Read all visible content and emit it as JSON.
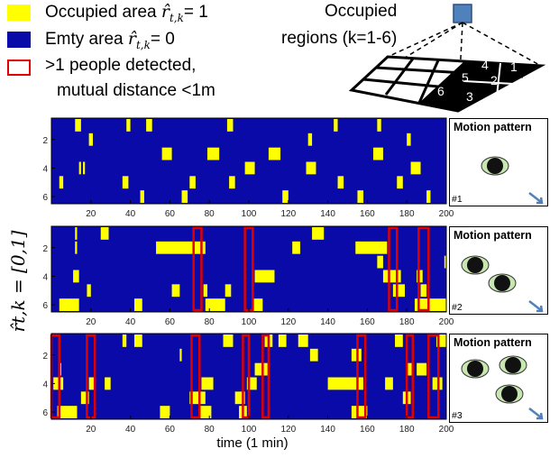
{
  "legend": {
    "occupied_prefix": "Occupied area ",
    "occupied_suffix": "= 1",
    "empty_prefix": "Emty area ",
    "empty_suffix": "= 0",
    "detected_line1": ">1 people detected,",
    "detected_line2": "mutual distance <1m",
    "r_symbol": "r̂",
    "r_subscript": "t,k",
    "colors": {
      "occupied": "#ffff00",
      "empty": "#0a0aa8",
      "box": "#e00000"
    }
  },
  "diagram": {
    "title_line1": "Occupied",
    "title_line2": "regions (k=1-6)",
    "region_numbers": [
      "4",
      "1",
      "5",
      "2",
      "6",
      "3"
    ]
  },
  "y_axis_label": "r̂t,k = [0,1]",
  "x_axis_label": "time (1 min)",
  "chart_data": [
    {
      "type": "heatmap",
      "xlim": [
        0,
        200
      ],
      "ylim": [
        0.5,
        6.5
      ],
      "x_ticks": [
        20,
        40,
        60,
        80,
        100,
        120,
        140,
        160,
        180,
        200
      ],
      "y_ticks": [
        2,
        4,
        6
      ],
      "occupied_segments": [
        {
          "row": 1,
          "start": 12,
          "end": 15
        },
        {
          "row": 1,
          "start": 38,
          "end": 40
        },
        {
          "row": 1,
          "start": 48,
          "end": 51
        },
        {
          "row": 1,
          "start": 89,
          "end": 92
        },
        {
          "row": 1,
          "start": 143,
          "end": 145
        },
        {
          "row": 1,
          "start": 165,
          "end": 167
        },
        {
          "row": 2,
          "start": 19,
          "end": 21
        },
        {
          "row": 2,
          "start": 130,
          "end": 132
        },
        {
          "row": 2,
          "start": 180,
          "end": 182
        },
        {
          "row": 3,
          "start": 56,
          "end": 61
        },
        {
          "row": 3,
          "start": 79,
          "end": 85
        },
        {
          "row": 3,
          "start": 110,
          "end": 116
        },
        {
          "row": 3,
          "start": 163,
          "end": 168
        },
        {
          "row": 4,
          "start": 14,
          "end": 15
        },
        {
          "row": 4,
          "start": 16,
          "end": 17
        },
        {
          "row": 4,
          "start": 98,
          "end": 103
        },
        {
          "row": 4,
          "start": 129,
          "end": 134
        },
        {
          "row": 4,
          "start": 182,
          "end": 187
        },
        {
          "row": 5,
          "start": 4,
          "end": 6
        },
        {
          "row": 5,
          "start": 36,
          "end": 39
        },
        {
          "row": 5,
          "start": 70,
          "end": 73
        },
        {
          "row": 5,
          "start": 90,
          "end": 93
        },
        {
          "row": 5,
          "start": 145,
          "end": 148
        },
        {
          "row": 5,
          "start": 175,
          "end": 178
        },
        {
          "row": 6,
          "start": 45,
          "end": 47
        },
        {
          "row": 6,
          "start": 66,
          "end": 69
        },
        {
          "row": 6,
          "start": 117,
          "end": 120
        },
        {
          "row": 6,
          "start": 155,
          "end": 158
        },
        {
          "row": 6,
          "start": 190,
          "end": 192
        }
      ],
      "red_boxes": [],
      "motion_pattern": {
        "title": "Motion pattern",
        "number": "#1",
        "people": 1
      }
    },
    {
      "type": "heatmap",
      "xlim": [
        0,
        200
      ],
      "ylim": [
        0.5,
        6.5
      ],
      "x_ticks": [
        20,
        40,
        60,
        80,
        100,
        120,
        140,
        160,
        180,
        200
      ],
      "y_ticks": [
        2,
        4,
        6
      ],
      "occupied_segments": [
        {
          "row": 1,
          "start": 12,
          "end": 13
        },
        {
          "row": 1,
          "start": 25,
          "end": 29
        },
        {
          "row": 1,
          "start": 132,
          "end": 138
        },
        {
          "row": 2,
          "start": 12,
          "end": 13
        },
        {
          "row": 2,
          "start": 53,
          "end": 78
        },
        {
          "row": 2,
          "start": 122,
          "end": 126
        },
        {
          "row": 2,
          "start": 154,
          "end": 170
        },
        {
          "row": 3,
          "start": 165,
          "end": 168
        },
        {
          "row": 3,
          "start": 199,
          "end": 200
        },
        {
          "row": 4,
          "start": 11,
          "end": 14
        },
        {
          "row": 4,
          "start": 103,
          "end": 113
        },
        {
          "row": 4,
          "start": 168,
          "end": 177
        },
        {
          "row": 4,
          "start": 185,
          "end": 188
        },
        {
          "row": 5,
          "start": 18,
          "end": 20
        },
        {
          "row": 5,
          "start": 61,
          "end": 65
        },
        {
          "row": 5,
          "start": 77,
          "end": 79
        },
        {
          "row": 5,
          "start": 88,
          "end": 91
        },
        {
          "row": 5,
          "start": 173,
          "end": 179
        },
        {
          "row": 5,
          "start": 187,
          "end": 190
        },
        {
          "row": 6,
          "start": 4,
          "end": 14
        },
        {
          "row": 6,
          "start": 42,
          "end": 46
        },
        {
          "row": 6,
          "start": 78,
          "end": 88
        },
        {
          "row": 6,
          "start": 102,
          "end": 107
        },
        {
          "row": 6,
          "start": 184,
          "end": 200
        }
      ],
      "red_boxes": [
        {
          "start": 72,
          "end": 76
        },
        {
          "start": 98,
          "end": 102
        },
        {
          "start": 171,
          "end": 175
        },
        {
          "start": 186,
          "end": 191
        }
      ],
      "motion_pattern": {
        "title": "Motion pattern",
        "number": "#2",
        "people": 2
      }
    },
    {
      "type": "heatmap",
      "xlim": [
        0,
        200
      ],
      "ylim": [
        0.5,
        6.5
      ],
      "x_ticks": [
        20,
        40,
        60,
        80,
        100,
        120,
        140,
        160,
        180,
        200
      ],
      "y_ticks": [
        2,
        4,
        6
      ],
      "occupied_segments": [
        {
          "row": 1,
          "start": 36,
          "end": 38
        },
        {
          "row": 1,
          "start": 42,
          "end": 46
        },
        {
          "row": 1,
          "start": 87,
          "end": 92
        },
        {
          "row": 1,
          "start": 108,
          "end": 112
        },
        {
          "row": 1,
          "start": 115,
          "end": 119
        },
        {
          "row": 1,
          "start": 125,
          "end": 130
        },
        {
          "row": 1,
          "start": 174,
          "end": 178
        },
        {
          "row": 1,
          "start": 195,
          "end": 200
        },
        {
          "row": 2,
          "start": 65,
          "end": 66
        },
        {
          "row": 2,
          "start": 131,
          "end": 135
        },
        {
          "row": 2,
          "start": 152,
          "end": 157
        },
        {
          "row": 3,
          "start": 4,
          "end": 5
        },
        {
          "row": 3,
          "start": 103,
          "end": 110
        },
        {
          "row": 3,
          "start": 180,
          "end": 183
        },
        {
          "row": 3,
          "start": 185,
          "end": 190
        },
        {
          "row": 4,
          "start": 1,
          "end": 6
        },
        {
          "row": 4,
          "start": 19,
          "end": 22
        },
        {
          "row": 4,
          "start": 27,
          "end": 30
        },
        {
          "row": 4,
          "start": 76,
          "end": 82
        },
        {
          "row": 4,
          "start": 99,
          "end": 104
        },
        {
          "row": 4,
          "start": 140,
          "end": 158
        },
        {
          "row": 4,
          "start": 169,
          "end": 173
        },
        {
          "row": 4,
          "start": 193,
          "end": 198
        },
        {
          "row": 5,
          "start": 15,
          "end": 19
        },
        {
          "row": 5,
          "start": 70,
          "end": 78
        },
        {
          "row": 5,
          "start": 93,
          "end": 98
        },
        {
          "row": 5,
          "start": 178,
          "end": 182
        },
        {
          "row": 6,
          "start": 3,
          "end": 13
        },
        {
          "row": 6,
          "start": 55,
          "end": 60
        },
        {
          "row": 6,
          "start": 75,
          "end": 81
        },
        {
          "row": 6,
          "start": 95,
          "end": 99
        },
        {
          "row": 6,
          "start": 152,
          "end": 160
        }
      ],
      "red_boxes": [
        {
          "start": 0,
          "end": 4
        },
        {
          "start": 18,
          "end": 22
        },
        {
          "start": 71,
          "end": 75
        },
        {
          "start": 97,
          "end": 100
        },
        {
          "start": 107,
          "end": 110
        },
        {
          "start": 155,
          "end": 159
        },
        {
          "start": 180,
          "end": 183
        },
        {
          "start": 191,
          "end": 196
        }
      ],
      "motion_pattern": {
        "title": "Motion pattern",
        "number": "#3",
        "people": 3
      }
    }
  ]
}
